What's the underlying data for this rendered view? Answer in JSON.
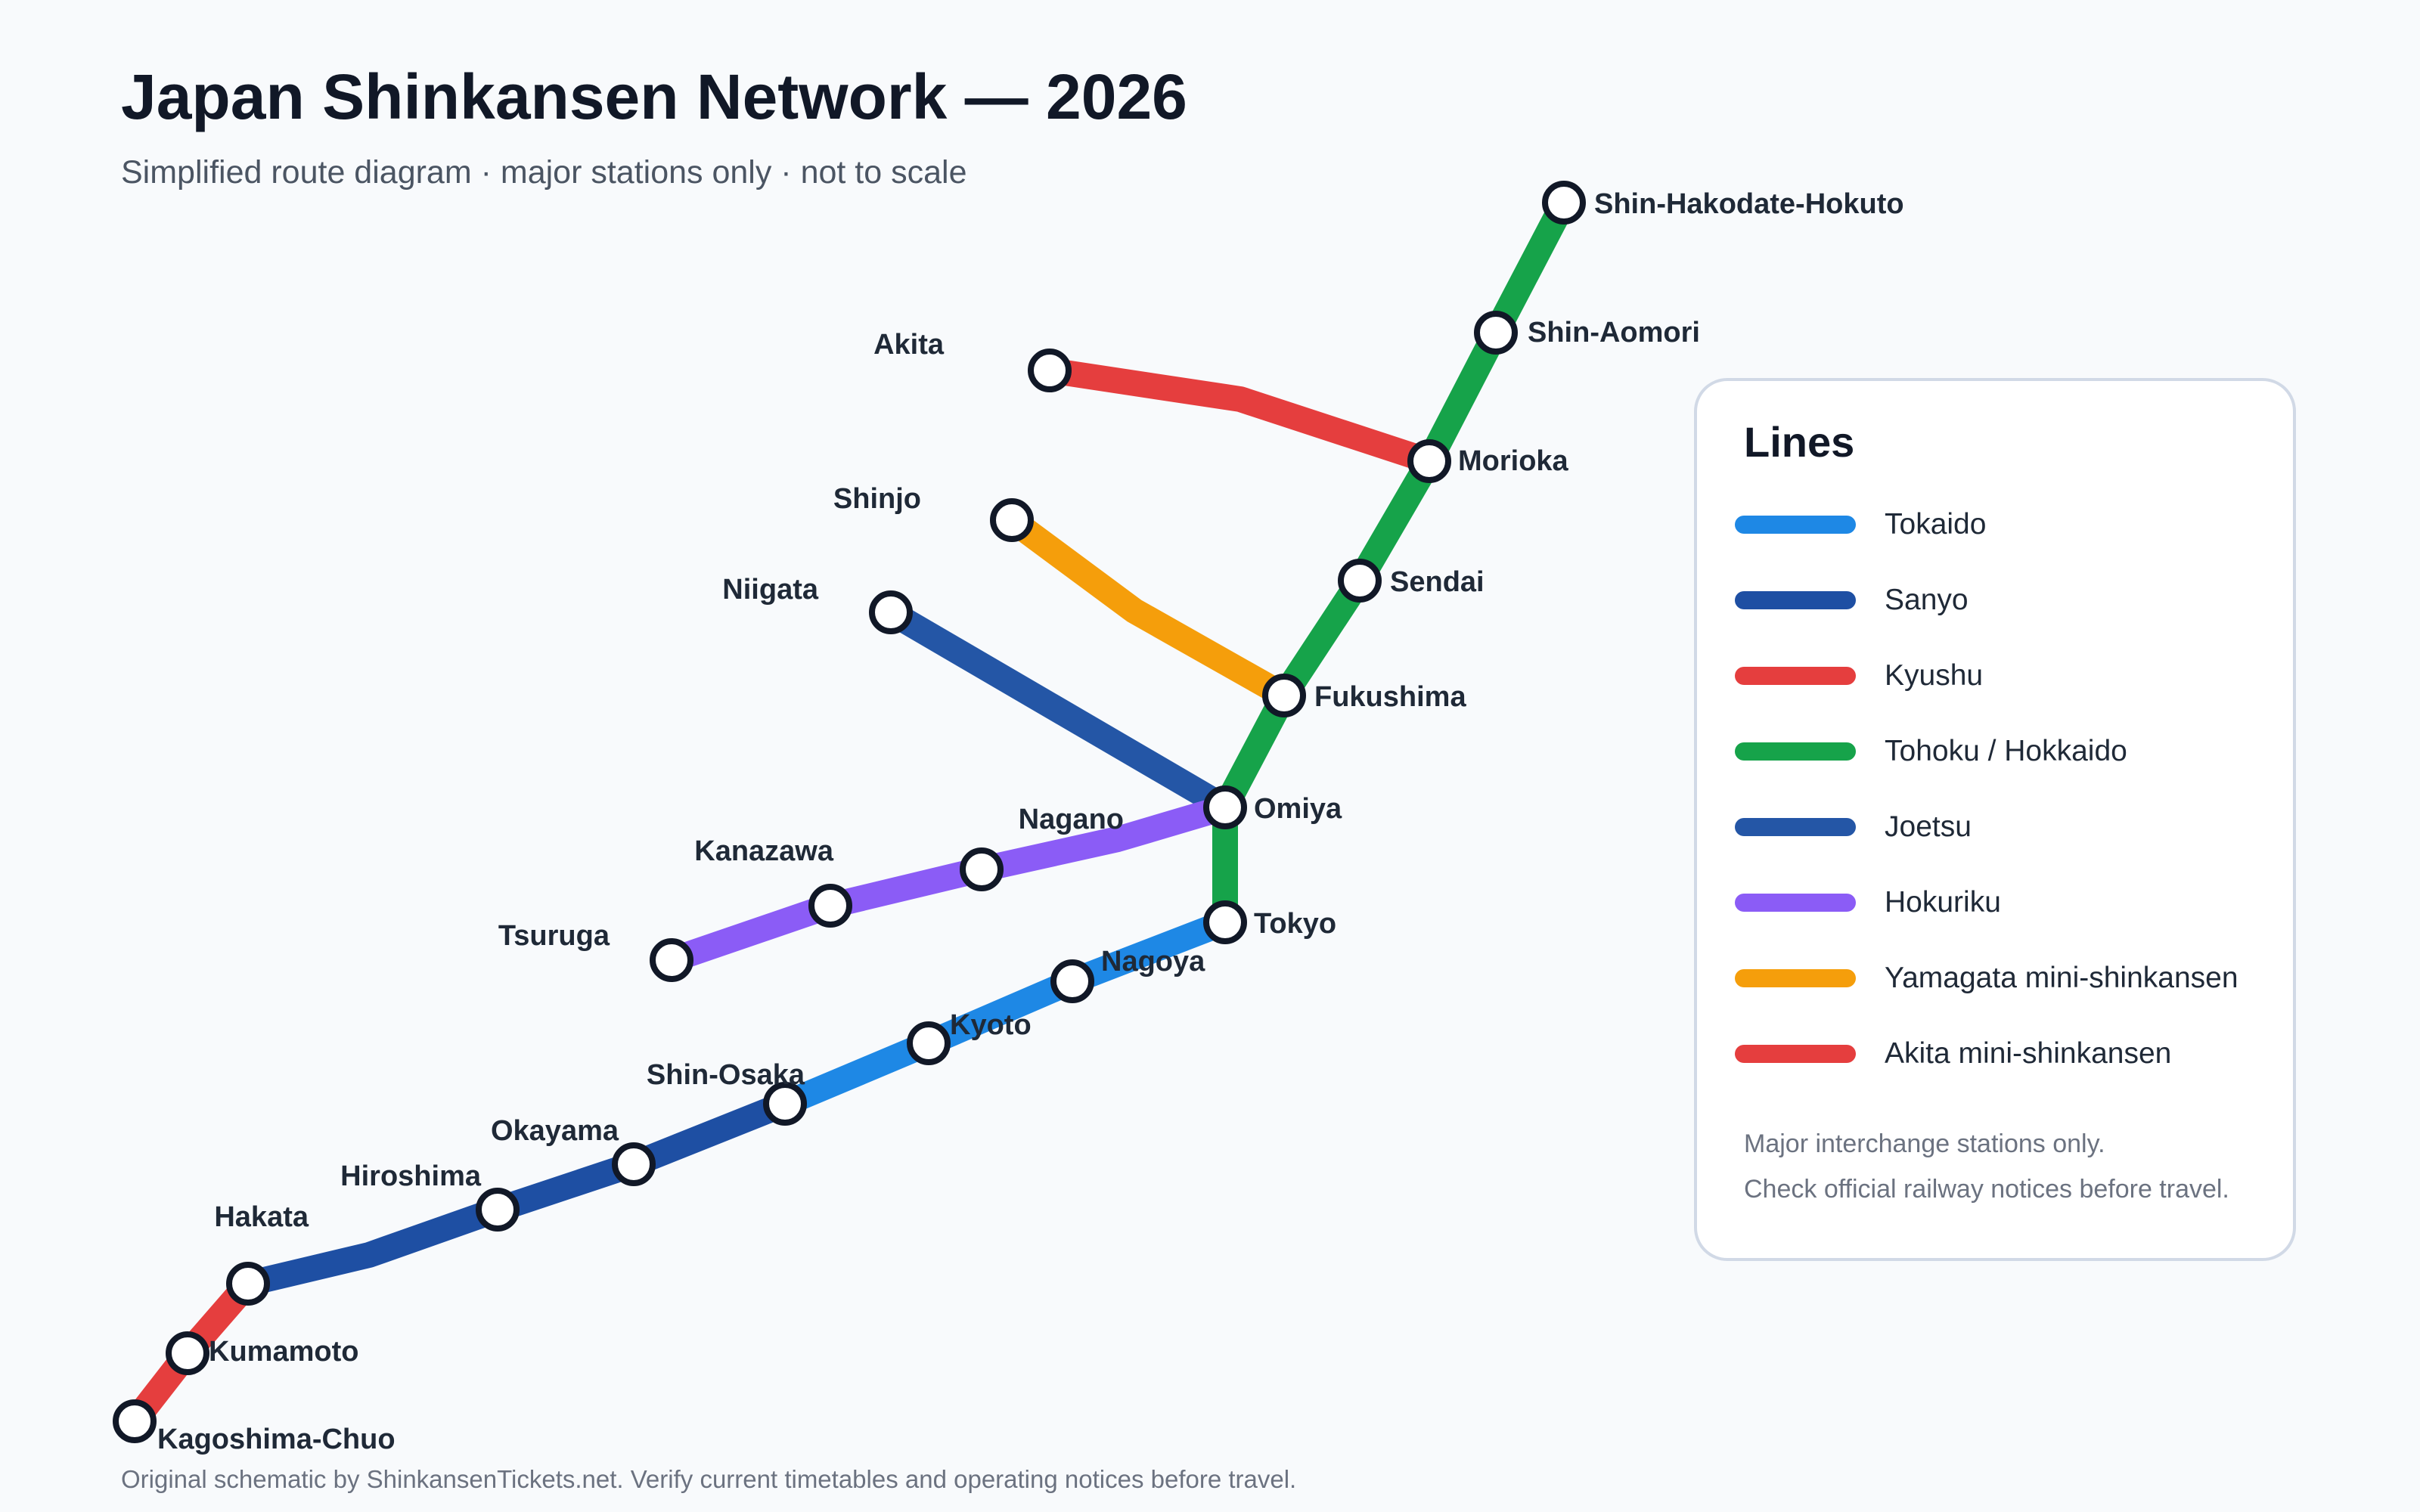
{
  "header": {
    "title": "Japan Shinkansen Network — 2026",
    "subtitle": "Simplified route diagram · major stations only · not to scale"
  },
  "stations": {
    "shin_hakodate_hokuto": "Shin-Hakodate-Hokuto",
    "shin_aomori": "Shin-Aomori",
    "akita": "Akita",
    "morioka": "Morioka",
    "shinjo": "Shinjo",
    "sendai": "Sendai",
    "niigata": "Niigata",
    "fukushima": "Fukushima",
    "omiya": "Omiya",
    "nagano": "Nagano",
    "kanazawa": "Kanazawa",
    "tsuruga": "Tsuruga",
    "tokyo": "Tokyo",
    "nagoya": "Nagoya",
    "kyoto": "Kyoto",
    "shin_osaka": "Shin-Osaka",
    "okayama": "Okayama",
    "hiroshima": "Hiroshima",
    "hakata": "Hakata",
    "kumamoto": "Kumamoto",
    "kagoshima_chuo": "Kagoshima-Chuo"
  },
  "lines": [
    {
      "id": "tokaido",
      "name": "Tokaido",
      "color": "#1e88e5",
      "stations": [
        "tokyo",
        "nagoya",
        "kyoto",
        "shin_osaka"
      ]
    },
    {
      "id": "sanyo",
      "name": "Sanyo",
      "color": "#1e4fa3",
      "stations": [
        "shin_osaka",
        "okayama",
        "hiroshima",
        "hakata"
      ]
    },
    {
      "id": "kyushu",
      "name": "Kyushu",
      "color": "#e53e3e",
      "stations": [
        "hakata",
        "kumamoto",
        "kagoshima_chuo"
      ]
    },
    {
      "id": "tohoku_hokkaido",
      "name": "Tohoku / Hokkaido",
      "color": "#16a34a",
      "stations": [
        "tokyo",
        "omiya",
        "fukushima",
        "sendai",
        "morioka",
        "shin_aomori",
        "shin_hakodate_hokuto"
      ]
    },
    {
      "id": "joetsu",
      "name": "Joetsu",
      "color": "#2456a6",
      "stations": [
        "omiya",
        "niigata"
      ]
    },
    {
      "id": "hokuriku",
      "name": "Hokuriku",
      "color": "#8b5cf6",
      "stations": [
        "omiya",
        "nagano",
        "kanazawa",
        "tsuruga"
      ]
    },
    {
      "id": "yamagata",
      "name": "Yamagata mini-shinkansen",
      "color": "#f59e0b",
      "stations": [
        "fukushima",
        "shinjo"
      ]
    },
    {
      "id": "akita",
      "name": "Akita mini-shinkansen",
      "color": "#e53e3e",
      "stations": [
        "morioka",
        "akita"
      ]
    }
  ],
  "legend": {
    "title": "Lines",
    "notes": [
      "Major interchange stations only.",
      "Check official railway notices before travel."
    ]
  },
  "footer": "Original schematic by ShinkansenTickets.net. Verify current timetables and operating notices before travel."
}
